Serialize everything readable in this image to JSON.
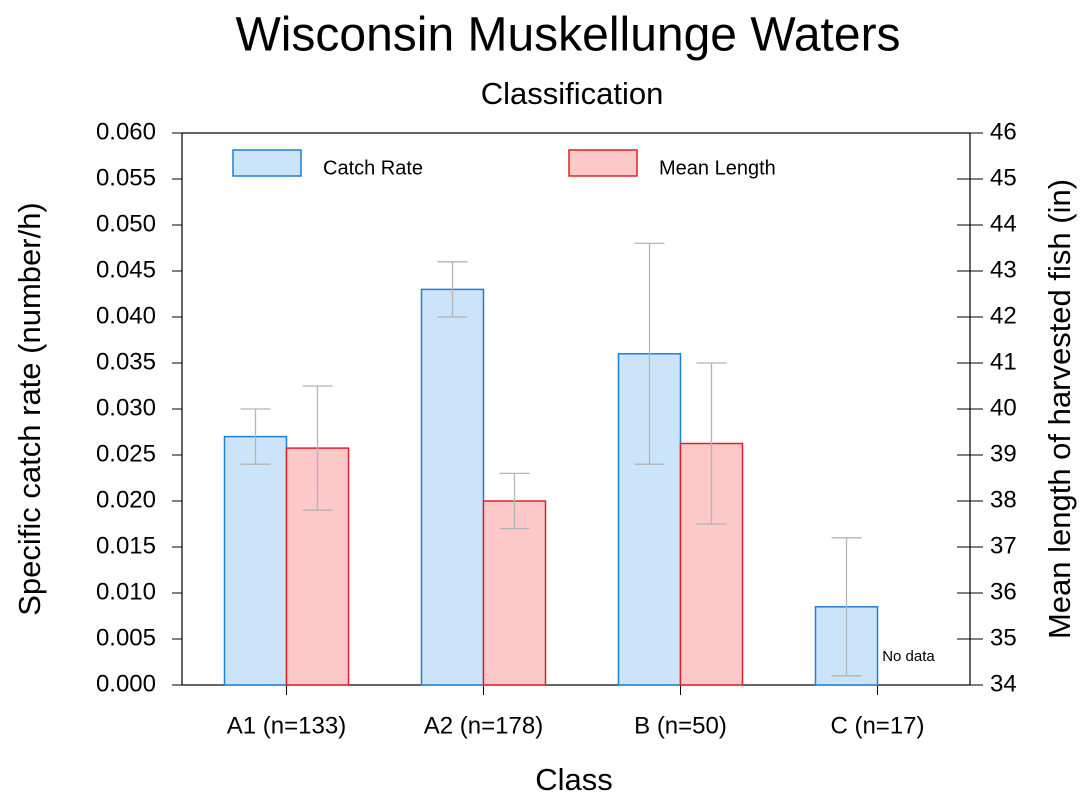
{
  "chart_data": {
    "type": "bar",
    "title": "Wisconsin Muskellunge Waters",
    "subtitle": "Classification",
    "x_label": "Class",
    "y_label": "Specific catch rate (number/h)",
    "y2_label": "Mean length of harvested fish (in)",
    "categories": [
      "A1 (n=133)",
      "A2 (n=178)",
      "B (n=50)",
      "C (n=17)"
    ],
    "series": [
      {
        "name": "Catch Rate",
        "color": "#cce4fa",
        "edge": "#1e7fd6",
        "axis": "y",
        "values": [
          0.027,
          0.043,
          0.036,
          0.0085
        ],
        "errors": [
          0.003,
          0.003,
          0.012,
          0.0075
        ]
      },
      {
        "name": "Mean Length",
        "color": "#fdc8c8",
        "edge": "#e0202a",
        "axis": "y2",
        "values": [
          39.15,
          38.0,
          39.25,
          null
        ],
        "errors": [
          1.35,
          0.6,
          1.75,
          null
        ]
      }
    ],
    "annotation": "No data",
    "ylim": [
      0,
      0.06
    ],
    "yticks": [
      {
        "value": 0,
        "label": "0.000"
      },
      {
        "value": 0.005,
        "label": "0.005"
      },
      {
        "value": 0.01,
        "label": "0.010"
      },
      {
        "value": 0.015,
        "label": "0.015"
      },
      {
        "value": 0.02,
        "label": "0.020"
      },
      {
        "value": 0.025,
        "label": "0.025"
      },
      {
        "value": 0.03,
        "label": "0.030"
      },
      {
        "value": 0.035,
        "label": "0.035"
      },
      {
        "value": 0.04,
        "label": "0.040"
      },
      {
        "value": 0.045,
        "label": "0.045"
      },
      {
        "value": 0.05,
        "label": "0.050"
      },
      {
        "value": 0.055,
        "label": "0.055"
      },
      {
        "value": 0.06,
        "label": "0.060"
      }
    ],
    "y2lim": [
      34,
      46
    ],
    "y2ticks": [
      34,
      35,
      36,
      37,
      38,
      39,
      40,
      41,
      42,
      43,
      44,
      45,
      46
    ],
    "error_color": "#b4b4b4",
    "legend": "top"
  }
}
